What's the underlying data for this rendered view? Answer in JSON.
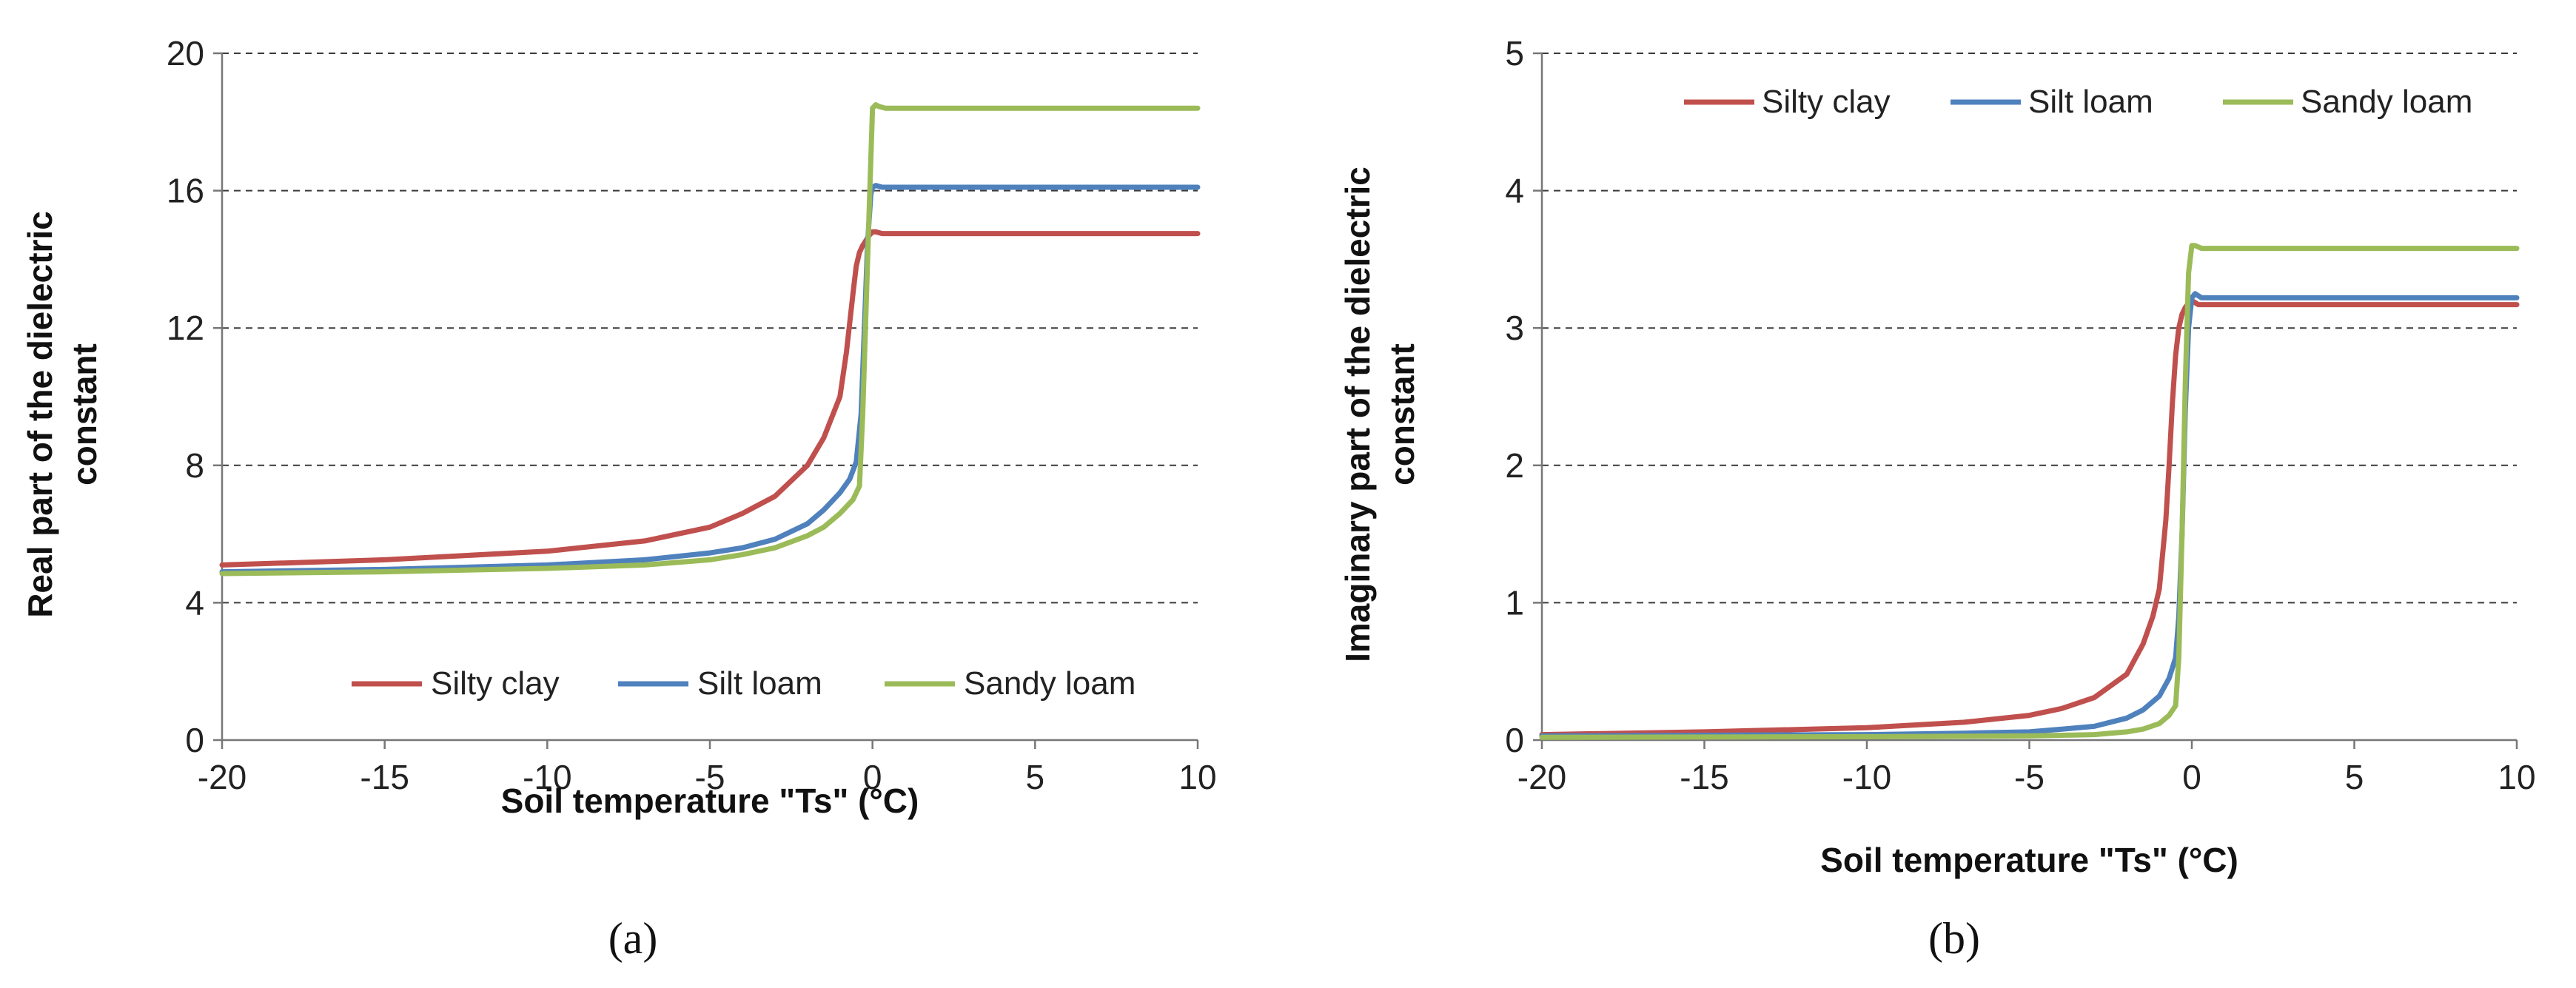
{
  "colors": {
    "silty_clay": "#c0504d",
    "silt_loam": "#4f81bd",
    "sandy_loam": "#9bbb59"
  },
  "chart_data": [
    {
      "type": "line",
      "panel_label": "(a)",
      "xlabel": "Soil temperature \"Ts\" (°C)",
      "ylabel_lines": [
        "Real part of the dielectric",
        "constant"
      ],
      "xlim": [
        -20,
        10
      ],
      "ylim": [
        0,
        20
      ],
      "x_ticks": [
        -20,
        -15,
        -10,
        -5,
        0,
        5,
        10
      ],
      "y_ticks": [
        0,
        4,
        8,
        12,
        16,
        20
      ],
      "x_tick_labels": [
        "-20",
        "-15",
        "-10",
        "-5",
        "0",
        "5",
        "10"
      ],
      "y_tick_labels": [
        "0",
        "4",
        "8",
        "12",
        "16",
        "20"
      ],
      "grid": "horizontal dashed",
      "legend_position": "bottom",
      "series": [
        {
          "name": "Silty clay",
          "color_key": "silty_clay",
          "x": [
            -20,
            -15,
            -10,
            -7,
            -5,
            -4,
            -3,
            -2,
            -1.5,
            -1,
            -0.8,
            -0.6,
            -0.5,
            -0.4,
            -0.3,
            -0.2,
            -0.1,
            0,
            0.1,
            0.3,
            0.5,
            10
          ],
          "y": [
            5.1,
            5.25,
            5.5,
            5.8,
            6.2,
            6.6,
            7.1,
            8.0,
            8.8,
            10.0,
            11.3,
            13.0,
            13.8,
            14.2,
            14.4,
            14.55,
            14.7,
            14.8,
            14.8,
            14.75,
            14.75,
            14.75
          ]
        },
        {
          "name": "Silt loam",
          "color_key": "silt_loam",
          "x": [
            -20,
            -15,
            -10,
            -7,
            -5,
            -4,
            -3,
            -2,
            -1.5,
            -1,
            -0.7,
            -0.5,
            -0.35,
            -0.25,
            -0.15,
            -0.05,
            0,
            0.1,
            0.3,
            10
          ],
          "y": [
            4.9,
            4.97,
            5.1,
            5.25,
            5.45,
            5.6,
            5.85,
            6.3,
            6.7,
            7.2,
            7.6,
            8.1,
            9.5,
            12.0,
            14.5,
            15.9,
            16.1,
            16.15,
            16.1,
            16.1
          ]
        },
        {
          "name": "Sandy loam",
          "color_key": "sandy_loam",
          "x": [
            -20,
            -15,
            -10,
            -7,
            -5,
            -4,
            -3,
            -2,
            -1.5,
            -1,
            -0.6,
            -0.4,
            -0.3,
            -0.2,
            -0.1,
            0,
            0.1,
            0.2,
            0.4,
            10
          ],
          "y": [
            4.85,
            4.9,
            5.0,
            5.1,
            5.25,
            5.4,
            5.6,
            5.95,
            6.2,
            6.6,
            7.0,
            7.4,
            9.5,
            12.5,
            15.5,
            18.4,
            18.5,
            18.45,
            18.4,
            18.4
          ]
        }
      ]
    },
    {
      "type": "line",
      "panel_label": "(b)",
      "xlabel": "Soil temperature \"Ts\" (°C)",
      "ylabel_lines": [
        "Imaginary part of the dielectric",
        "constant"
      ],
      "xlim": [
        -20,
        10
      ],
      "ylim": [
        0,
        5
      ],
      "x_ticks": [
        -20,
        -15,
        -10,
        -5,
        0,
        5,
        10
      ],
      "y_ticks": [
        0,
        1,
        2,
        3,
        4,
        5
      ],
      "x_tick_labels": [
        "-20",
        "-15",
        "-10",
        "-5",
        "0",
        "5",
        "10"
      ],
      "y_tick_labels": [
        "0",
        "1",
        "2",
        "3",
        "4",
        "5"
      ],
      "grid": "horizontal dashed",
      "legend_position": "top",
      "series": [
        {
          "name": "Silty clay",
          "color_key": "silty_clay",
          "x": [
            -20,
            -15,
            -10,
            -7,
            -5,
            -4,
            -3,
            -2,
            -1.5,
            -1.2,
            -1,
            -0.8,
            -0.7,
            -0.6,
            -0.5,
            -0.4,
            -0.3,
            -0.2,
            -0.1,
            0,
            0.2,
            0.5,
            10
          ],
          "y": [
            0.04,
            0.06,
            0.09,
            0.13,
            0.18,
            0.23,
            0.31,
            0.48,
            0.7,
            0.9,
            1.1,
            1.6,
            2.0,
            2.45,
            2.8,
            3.0,
            3.1,
            3.15,
            3.18,
            3.2,
            3.17,
            3.17,
            3.17
          ]
        },
        {
          "name": "Silt loam",
          "color_key": "silt_loam",
          "x": [
            -20,
            -15,
            -10,
            -7,
            -5,
            -4,
            -3,
            -2,
            -1.5,
            -1,
            -0.7,
            -0.5,
            -0.4,
            -0.3,
            -0.2,
            -0.1,
            0,
            0.1,
            0.3,
            10
          ],
          "y": [
            0.03,
            0.035,
            0.04,
            0.05,
            0.06,
            0.08,
            0.1,
            0.16,
            0.22,
            0.32,
            0.45,
            0.6,
            0.9,
            1.5,
            2.4,
            3.0,
            3.22,
            3.25,
            3.22,
            3.22
          ]
        },
        {
          "name": "Sandy loam",
          "color_key": "sandy_loam",
          "x": [
            -20,
            -15,
            -10,
            -7,
            -5,
            -4,
            -3,
            -2,
            -1.5,
            -1,
            -0.7,
            -0.5,
            -0.4,
            -0.3,
            -0.2,
            -0.1,
            0,
            0.1,
            0.3,
            10
          ],
          "y": [
            0.02,
            0.022,
            0.025,
            0.028,
            0.03,
            0.035,
            0.04,
            0.06,
            0.08,
            0.12,
            0.18,
            0.25,
            0.6,
            1.5,
            2.6,
            3.4,
            3.6,
            3.6,
            3.58,
            3.58
          ]
        }
      ]
    }
  ]
}
